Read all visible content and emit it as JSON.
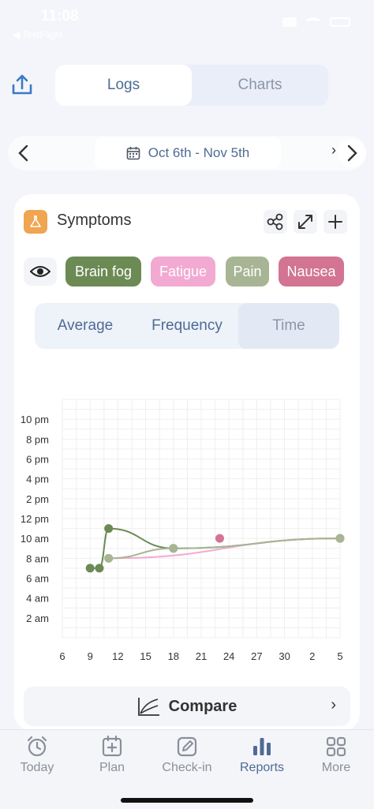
{
  "status": {
    "time": "11:08",
    "back_label": "◀ TestFlight"
  },
  "colors": {
    "accent": "#4e6b94",
    "brain_fog": "#6c8a54",
    "fatigue": "#f2a9d2",
    "pain": "#a7b594",
    "nausea": "#d27492",
    "symptoms_icon": "#f0a550"
  },
  "header": {
    "share_icon": "share-icon",
    "tabs": [
      {
        "label": "Logs",
        "active": true
      },
      {
        "label": "Charts",
        "active": false
      }
    ]
  },
  "date_range": {
    "label": "Oct 6th - Nov 5th",
    "icon": "calendar-icon"
  },
  "card": {
    "title": "Symptoms",
    "tools": [
      "share-nodes-icon",
      "expand-icon",
      "plus-icon"
    ],
    "chips": [
      {
        "label": "Brain fog",
        "color": "#6c8a54"
      },
      {
        "label": "Fatigue",
        "color": "#f2a9d2"
      },
      {
        "label": "Pain",
        "color": "#a7b594"
      },
      {
        "label": "Nausea",
        "color": "#d27492"
      }
    ],
    "modes": [
      {
        "label": "Average"
      },
      {
        "label": "Frequency"
      },
      {
        "label": "Time",
        "active": true
      }
    ],
    "compare_label": "Compare"
  },
  "chart_data": {
    "type": "scatter",
    "y_tick_labels": [
      "2 am",
      "4 am",
      "6 am",
      "8 am",
      "10 am",
      "12 pm",
      "2 pm",
      "4 pm",
      "6 pm",
      "8 pm",
      "10 pm"
    ],
    "x_tick_labels": [
      "6",
      "9",
      "12",
      "15",
      "18",
      "21",
      "24",
      "27",
      "30",
      "2",
      "5"
    ],
    "x_range_day_index": [
      0,
      30
    ],
    "y_range_hours": [
      0,
      24
    ],
    "grid": true,
    "series": [
      {
        "name": "Brain fog",
        "color": "#6c8a54",
        "points": [
          {
            "x": 3,
            "y": 7
          },
          {
            "x": 4,
            "y": 7
          },
          {
            "x": 5,
            "y": 11
          },
          {
            "x": 12,
            "y": 9
          },
          {
            "x": 30,
            "y": 10
          }
        ]
      },
      {
        "name": "Fatigue",
        "color": "#f2a9d2",
        "points": [
          {
            "x": 5,
            "y": 8
          },
          {
            "x": 30,
            "y": 10
          }
        ]
      },
      {
        "name": "Pain",
        "color": "#a7b594",
        "points": [
          {
            "x": 5,
            "y": 8
          },
          {
            "x": 12,
            "y": 9
          },
          {
            "x": 30,
            "y": 10
          }
        ]
      },
      {
        "name": "Nausea",
        "color": "#d27492",
        "points": [
          {
            "x": 17,
            "y": 10
          }
        ]
      }
    ]
  },
  "tabbar": {
    "items": [
      {
        "label": "Today",
        "icon": "alarm-clock-icon"
      },
      {
        "label": "Plan",
        "icon": "calendar-plus-icon"
      },
      {
        "label": "Check-in",
        "icon": "pencil-square-icon"
      },
      {
        "label": "Reports",
        "icon": "bar-chart-icon",
        "active": true
      },
      {
        "label": "More",
        "icon": "grid-icon"
      }
    ]
  }
}
